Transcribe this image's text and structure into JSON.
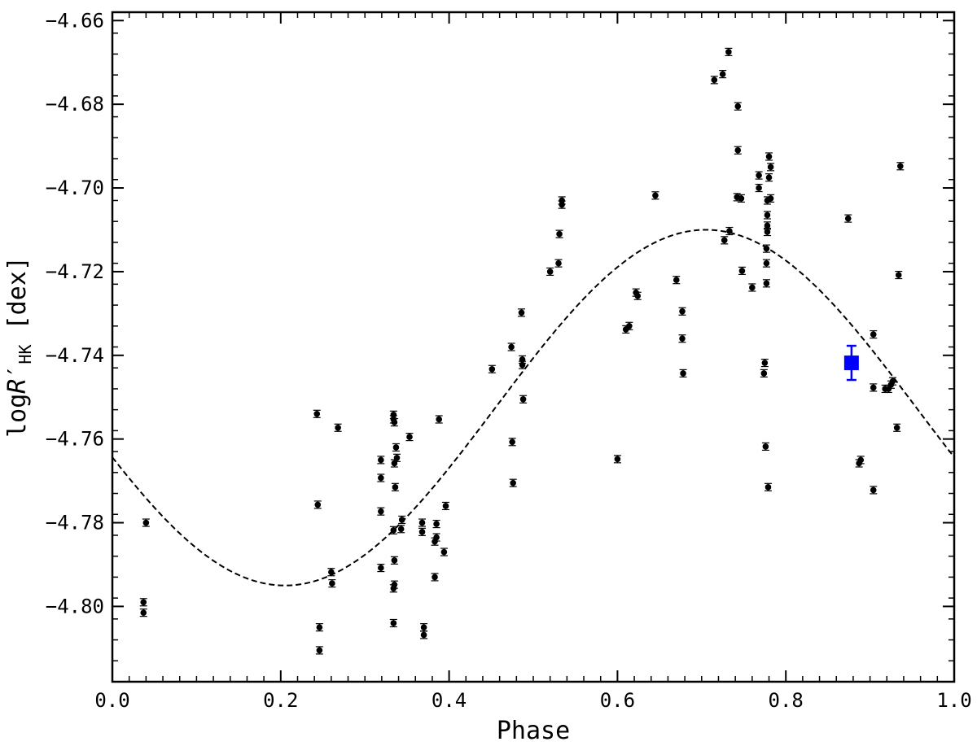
{
  "chart_data": {
    "type": "scatter",
    "xlabel": "Phase",
    "ylabel": {
      "prefix": "log",
      "R": "R",
      "prime": "′",
      "subscript": "HK",
      "unit": "[dex]"
    },
    "xlim": [
      0.0,
      1.0
    ],
    "ylim": [
      -4.818,
      -4.658
    ],
    "xticks": [
      "0.0",
      "0.2",
      "0.4",
      "0.6",
      "0.8",
      "1.0"
    ],
    "xtick_values": [
      0.0,
      0.2,
      0.4,
      0.6,
      0.8,
      1.0
    ],
    "yticks": [
      "−4.66",
      "−4.68",
      "−4.70",
      "−4.72",
      "−4.74",
      "−4.76",
      "−4.78",
      "−4.80"
    ],
    "ytick_values": [
      -4.66,
      -4.68,
      -4.7,
      -4.72,
      -4.74,
      -4.76,
      -4.78,
      -4.8
    ],
    "grid": false,
    "colors": {
      "points": "#000000",
      "highlight": "#0000ff",
      "fit": "#000000"
    },
    "fit_curve": {
      "style": "dashed",
      "form": "sinusoid",
      "mean": -4.7525,
      "amplitude": 0.0425,
      "phase_of_max": 0.705
    },
    "series": [
      {
        "color": "#000000",
        "marker": "circle",
        "points": [
          [
            0.037,
            -4.799
          ],
          [
            0.037,
            -4.8015
          ],
          [
            0.04,
            -4.78
          ],
          [
            0.243,
            -4.754
          ],
          [
            0.244,
            -4.7757
          ],
          [
            0.246,
            -4.805
          ],
          [
            0.246,
            -4.8105
          ],
          [
            0.26,
            -4.7918
          ],
          [
            0.261,
            -4.7945
          ],
          [
            0.268,
            -4.7573
          ],
          [
            0.319,
            -4.765
          ],
          [
            0.319,
            -4.7693
          ],
          [
            0.319,
            -4.7773
          ],
          [
            0.319,
            -4.7908
          ],
          [
            0.334,
            -4.7542
          ],
          [
            0.334,
            -4.7553
          ],
          [
            0.335,
            -4.756
          ],
          [
            0.335,
            -4.7658
          ],
          [
            0.336,
            -4.7715
          ],
          [
            0.334,
            -4.7818
          ],
          [
            0.335,
            -4.789
          ],
          [
            0.335,
            -4.7948
          ],
          [
            0.334,
            -4.7957
          ],
          [
            0.334,
            -4.804
          ],
          [
            0.337,
            -4.762
          ],
          [
            0.338,
            -4.7645
          ],
          [
            0.344,
            -4.7793
          ],
          [
            0.343,
            -4.7815
          ],
          [
            0.353,
            -4.7595
          ],
          [
            0.368,
            -4.78
          ],
          [
            0.368,
            -4.7822
          ],
          [
            0.37,
            -4.805
          ],
          [
            0.37,
            -4.8068
          ],
          [
            0.383,
            -4.7845
          ],
          [
            0.385,
            -4.7803
          ],
          [
            0.385,
            -4.7835
          ],
          [
            0.383,
            -4.793
          ],
          [
            0.388,
            -4.7553
          ],
          [
            0.394,
            -4.787
          ],
          [
            0.396,
            -4.776
          ],
          [
            0.451,
            -4.7433
          ],
          [
            0.474,
            -4.738
          ],
          [
            0.475,
            -4.7607
          ],
          [
            0.476,
            -4.7705
          ],
          [
            0.486,
            -4.7298
          ],
          [
            0.487,
            -4.741
          ],
          [
            0.487,
            -4.7423
          ],
          [
            0.488,
            -4.7505
          ],
          [
            0.52,
            -4.72
          ],
          [
            0.53,
            -4.718
          ],
          [
            0.531,
            -4.711
          ],
          [
            0.534,
            -4.703
          ],
          [
            0.534,
            -4.704
          ],
          [
            0.6,
            -4.7648
          ],
          [
            0.61,
            -4.7338
          ],
          [
            0.614,
            -4.733
          ],
          [
            0.622,
            -4.725
          ],
          [
            0.624,
            -4.7258
          ],
          [
            0.645,
            -4.7018
          ],
          [
            0.67,
            -4.722
          ],
          [
            0.677,
            -4.7295
          ],
          [
            0.677,
            -4.736
          ],
          [
            0.678,
            -4.7443
          ],
          [
            0.715,
            -4.6742
          ],
          [
            0.725,
            -4.6728
          ],
          [
            0.727,
            -4.7125
          ],
          [
            0.732,
            -4.6675
          ],
          [
            0.733,
            -4.7103
          ],
          [
            0.743,
            -4.6805
          ],
          [
            0.743,
            -4.691
          ],
          [
            0.742,
            -4.7022
          ],
          [
            0.747,
            -4.7025
          ],
          [
            0.748,
            -4.7198
          ],
          [
            0.76,
            -4.7238
          ],
          [
            0.768,
            -4.697
          ],
          [
            0.768,
            -4.7
          ],
          [
            0.775,
            -4.7418
          ],
          [
            0.774,
            -4.7443
          ],
          [
            0.776,
            -4.7618
          ],
          [
            0.777,
            -4.7145
          ],
          [
            0.777,
            -4.718
          ],
          [
            0.777,
            -4.7228
          ],
          [
            0.778,
            -4.7065
          ],
          [
            0.778,
            -4.709
          ],
          [
            0.778,
            -4.7105
          ],
          [
            0.778,
            -4.703
          ],
          [
            0.779,
            -4.7715
          ],
          [
            0.78,
            -4.6925
          ],
          [
            0.78,
            -4.6975
          ],
          [
            0.782,
            -4.695
          ],
          [
            0.782,
            -4.7025
          ],
          [
            0.874,
            -4.7073
          ],
          [
            0.887,
            -4.7658
          ],
          [
            0.889,
            -4.765
          ],
          [
            0.904,
            -4.735
          ],
          [
            0.904,
            -4.7477
          ],
          [
            0.904,
            -4.7722
          ],
          [
            0.918,
            -4.748
          ],
          [
            0.922,
            -4.748
          ],
          [
            0.925,
            -4.747
          ],
          [
            0.927,
            -4.7462
          ],
          [
            0.932,
            -4.7573
          ],
          [
            0.934,
            -4.7208
          ],
          [
            0.936,
            -4.6948
          ]
        ]
      },
      {
        "color": "#0000ff",
        "marker": "square",
        "points": [
          [
            0.878,
            -4.7418
          ]
        ]
      }
    ]
  }
}
